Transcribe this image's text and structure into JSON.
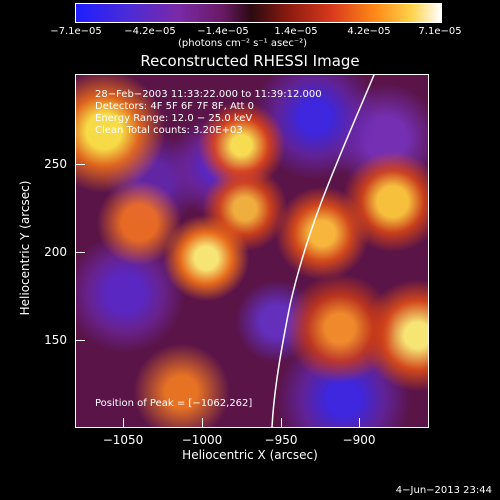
{
  "colorbar": {
    "tick_labels": [
      "−7.1e−05",
      "−4.2e−05",
      "−1.4e−05",
      "1.4e−05",
      "4.2e−05",
      "7.1e−05"
    ],
    "units": "(photons cm⁻² s⁻¹ asec⁻²)"
  },
  "title": "Reconstructed RHESSI Image",
  "annotations": {
    "time_range": "28−Feb−2003 11:33:22.000 to 11:39:12.000",
    "detectors": "Detectors: 4F 5F 6F 7F 8F, Att 0",
    "energy_range": "Energy Range: 12.0 − 25.0 keV",
    "method": "Clean    Total counts: 3.20E+03",
    "peak": "Position of Peak = [−1062,262]"
  },
  "axes": {
    "x_label": "Heliocentric X (arcsec)",
    "y_label": "Heliocentric Y (arcsec)",
    "x_ticks": [
      "−1050",
      "−1000",
      "−950",
      "−900"
    ],
    "y_ticks": [
      "250",
      "200",
      "150"
    ]
  },
  "footer": {
    "timestamp": "4−Jun−2013 23:44"
  },
  "colors": {
    "background": "#000000",
    "foreground": "#ffffff"
  }
}
